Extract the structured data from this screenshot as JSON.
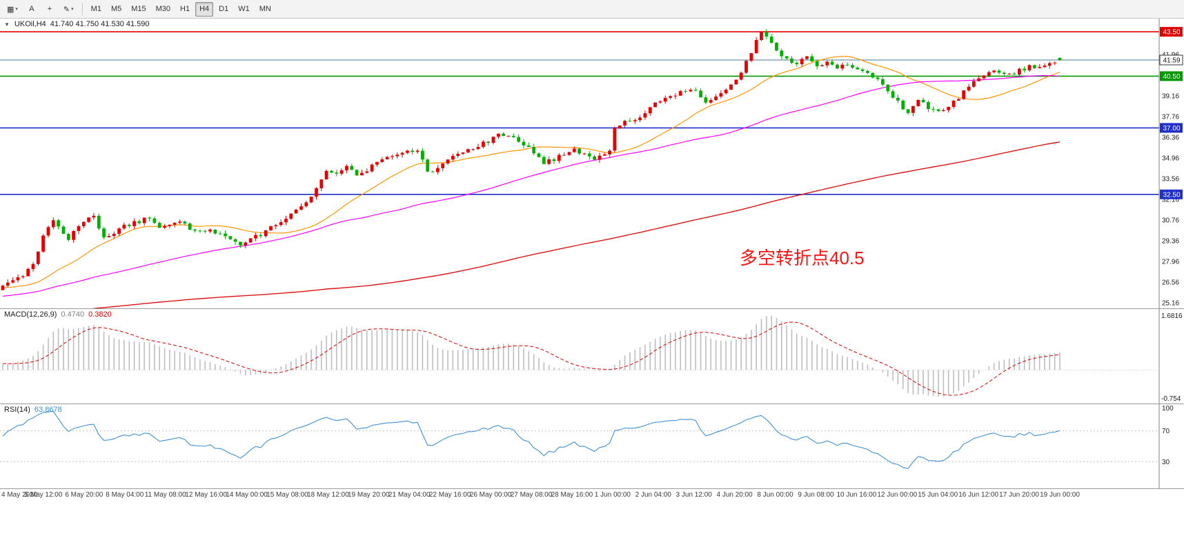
{
  "toolbar": {
    "icon_buttons": [
      {
        "name": "chart-type-button",
        "icon_name": "candlestick-chart-icon",
        "glyph": "▦",
        "dropdown": true
      },
      {
        "name": "text-annotation-button",
        "icon_name": "letter-a-icon",
        "glyph": "A",
        "dropdown": false
      },
      {
        "name": "crosshair-button",
        "icon_name": "crosshair-icon",
        "glyph": "+",
        "dropdown": false
      },
      {
        "name": "draw-tools-button",
        "icon_name": "pencil-icon",
        "glyph": "✎",
        "dropdown": true
      }
    ],
    "timeframes": [
      {
        "label": "M1",
        "active": false
      },
      {
        "label": "M5",
        "active": false
      },
      {
        "label": "M15",
        "active": false
      },
      {
        "label": "M30",
        "active": false
      },
      {
        "label": "H1",
        "active": false
      },
      {
        "label": "H4",
        "active": true
      },
      {
        "label": "D1",
        "active": false
      },
      {
        "label": "W1",
        "active": false
      },
      {
        "label": "MN",
        "active": false
      }
    ]
  },
  "chart_header": {
    "symbol_period": "UKOil,H4",
    "ohlc": "41.740 41.750 41.530 41.590"
  },
  "annotation": {
    "text": "多空转折点40.5",
    "color": "#ff1414"
  },
  "macd_header": {
    "name": "MACD(12,26,9)",
    "macd_value": "0.4740",
    "signal_value": "0.3820"
  },
  "rsi_header": {
    "name": "RSI(14)",
    "value": "63.8678"
  },
  "chart_data": {
    "type": "candlestick",
    "symbol": "UKOil",
    "timeframe": "H4",
    "bars": 210,
    "current_ohlc": {
      "open": 41.74,
      "high": 41.75,
      "low": 41.53,
      "close": 41.59
    },
    "candle_colors": {
      "up": "#e60000",
      "down": "#00b000"
    },
    "price_axis": {
      "min": 24.79,
      "max": 44.39,
      "grid_labels": [
        "41.96",
        "40.56",
        "39.16",
        "37.76",
        "36.36",
        "34.96",
        "33.56",
        "32.16",
        "30.76",
        "29.36",
        "27.96",
        "26.56",
        "25.16"
      ]
    },
    "hlines": [
      {
        "price": 43.5,
        "label": "43.50",
        "color": "#e00000",
        "width": 1.6,
        "current": false
      },
      {
        "price": 41.59,
        "label": "41.59",
        "color": "#48789c",
        "width": 1.0,
        "current": true
      },
      {
        "price": 40.5,
        "label": "40.50",
        "color": "#009800",
        "width": 1.6,
        "current": false
      },
      {
        "price": 37.0,
        "label": "37.00",
        "color": "#1f2fcc",
        "width": 1.6,
        "current": false
      },
      {
        "price": 32.5,
        "label": "32.50",
        "color": "#1f2fcc",
        "width": 1.6,
        "current": false
      }
    ],
    "close_path_anchors": [
      [
        0,
        26.3
      ],
      [
        2,
        26.8
      ],
      [
        4,
        27.1
      ],
      [
        6,
        27.9
      ],
      [
        8,
        29.6
      ],
      [
        10,
        30.8
      ],
      [
        11,
        30.2
      ],
      [
        13,
        29.5
      ],
      [
        14,
        29.9
      ],
      [
        16,
        30.7
      ],
      [
        18,
        31.2
      ],
      [
        19,
        30.2
      ],
      [
        20,
        29.6
      ],
      [
        22,
        29.9
      ],
      [
        24,
        30.3
      ],
      [
        27,
        30.7
      ],
      [
        29,
        30.9
      ],
      [
        31,
        30.3
      ],
      [
        33,
        30.5
      ],
      [
        35,
        30.6
      ],
      [
        37,
        30.2
      ],
      [
        39,
        29.9
      ],
      [
        41,
        30.2
      ],
      [
        43,
        29.7
      ],
      [
        45,
        29.4
      ],
      [
        47,
        29.1
      ],
      [
        49,
        29.6
      ],
      [
        51,
        29.8
      ],
      [
        53,
        30.2
      ],
      [
        55,
        30.6
      ],
      [
        57,
        31.1
      ],
      [
        59,
        31.7
      ],
      [
        61,
        32.3
      ],
      [
        63,
        33.6
      ],
      [
        64,
        34.2
      ],
      [
        66,
        33.8
      ],
      [
        68,
        34.3
      ],
      [
        70,
        33.9
      ],
      [
        72,
        34.2
      ],
      [
        74,
        34.6
      ],
      [
        76,
        35.1
      ],
      [
        78,
        35.2
      ],
      [
        80,
        35.4
      ],
      [
        82,
        35.6
      ],
      [
        83,
        34.8
      ],
      [
        84,
        33.9
      ],
      [
        86,
        34.4
      ],
      [
        88,
        34.9
      ],
      [
        90,
        35.2
      ],
      [
        92,
        35.5
      ],
      [
        94,
        35.8
      ],
      [
        96,
        36.1
      ],
      [
        98,
        36.5
      ],
      [
        100,
        36.6
      ],
      [
        102,
        36.2
      ],
      [
        104,
        35.6
      ],
      [
        106,
        34.9
      ],
      [
        107,
        34.7
      ],
      [
        109,
        34.9
      ],
      [
        111,
        35.2
      ],
      [
        113,
        35.5
      ],
      [
        115,
        35.2
      ],
      [
        117,
        34.9
      ],
      [
        119,
        35.2
      ],
      [
        120,
        35.4
      ],
      [
        121,
        37.1
      ],
      [
        123,
        37.4
      ],
      [
        125,
        37.6
      ],
      [
        127,
        38.0
      ],
      [
        129,
        38.6
      ],
      [
        131,
        39.0
      ],
      [
        133,
        39.3
      ],
      [
        135,
        39.6
      ],
      [
        137,
        39.4
      ],
      [
        139,
        38.8
      ],
      [
        141,
        39.1
      ],
      [
        143,
        39.6
      ],
      [
        145,
        40.2
      ],
      [
        147,
        41.5
      ],
      [
        149,
        42.9
      ],
      [
        150,
        43.6
      ],
      [
        151,
        43.2
      ],
      [
        153,
        42.3
      ],
      [
        155,
        41.6
      ],
      [
        157,
        41.4
      ],
      [
        159,
        41.9
      ],
      [
        161,
        41.3
      ],
      [
        163,
        41.4
      ],
      [
        165,
        41.1
      ],
      [
        167,
        41.2
      ],
      [
        169,
        41.1
      ],
      [
        171,
        40.7
      ],
      [
        173,
        40.2
      ],
      [
        175,
        39.5
      ],
      [
        177,
        38.7
      ],
      [
        179,
        37.9
      ],
      [
        181,
        38.8
      ],
      [
        183,
        38.4
      ],
      [
        185,
        38.0
      ],
      [
        187,
        38.4
      ],
      [
        189,
        39.1
      ],
      [
        191,
        39.9
      ],
      [
        193,
        40.5
      ],
      [
        195,
        40.8
      ],
      [
        197,
        40.8
      ],
      [
        199,
        40.6
      ],
      [
        201,
        40.9
      ],
      [
        203,
        41.1
      ],
      [
        205,
        41.2
      ],
      [
        207,
        41.4
      ],
      [
        209,
        41.59
      ]
    ],
    "pre_window_anchors": [
      [
        -135,
        29.5
      ],
      [
        -122,
        25.5
      ],
      [
        -110,
        21.5
      ],
      [
        -100,
        19.8
      ],
      [
        -88,
        21.0
      ],
      [
        -75,
        22.8
      ],
      [
        -60,
        24.2
      ],
      [
        -45,
        25.2
      ],
      [
        -30,
        25.8
      ],
      [
        -15,
        26.1
      ],
      [
        -1,
        26.2
      ]
    ],
    "noise": {
      "seed": 1234567,
      "pre_bars": 135,
      "close_amp": 0.15,
      "wick_amp": 0.22
    },
    "moving_averages": [
      {
        "name": "MA20",
        "period": 20,
        "color": "#ff9500",
        "width": 1.2
      },
      {
        "name": "MA60",
        "period": 60,
        "color": "#ff00ff",
        "width": 1.2
      },
      {
        "name": "MA200",
        "period": 200,
        "color": "#dd1111",
        "width": 1.4
      }
    ],
    "macd": {
      "fast": 12,
      "slow": 26,
      "signal_period": 9,
      "scale_max_label": "1.6816",
      "scale_min_label": "-0.754",
      "histogram_color": "#bdbdbd",
      "signal_color": "#d40000"
    },
    "rsi": {
      "period": 14,
      "color": "#3f8fd2",
      "levels": [
        70,
        30
      ],
      "scale_labels": [
        "100",
        "70",
        "30"
      ]
    },
    "time_labels": [
      "4 May 2020",
      "5 May 12:00",
      "6 May 20:00",
      "8 May 04:00",
      "11 May 08:00",
      "12 May 16:00",
      "14 May 00:00",
      "15 May 08:00",
      "18 May 12:00",
      "19 May 20:00",
      "21 May 04:00",
      "22 May 16:00",
      "26 May 00:00",
      "27 May 08:00",
      "28 May 16:00",
      "1 Jun 00:00",
      "2 Jun 04:00",
      "3 Jun 12:00",
      "4 Jun 20:00",
      "8 Jun 00:00",
      "9 Jun 08:00",
      "10 Jun 16:00",
      "12 Jun 00:00",
      "15 Jun 04:00",
      "16 Jun 12:00",
      "17 Jun 20:00",
      "19 Jun 00:00"
    ]
  }
}
